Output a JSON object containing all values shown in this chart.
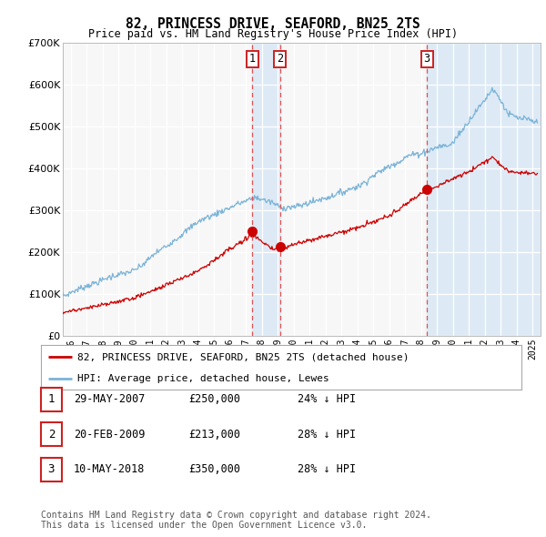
{
  "title": "82, PRINCESS DRIVE, SEAFORD, BN25 2TS",
  "subtitle": "Price paid vs. HM Land Registry's House Price Index (HPI)",
  "ylim": [
    0,
    700000
  ],
  "yticks": [
    0,
    100000,
    200000,
    300000,
    400000,
    500000,
    600000,
    700000
  ],
  "hpi_color": "#7ab3d8",
  "price_color": "#cc0000",
  "transactions": [
    {
      "num": 1,
      "date": "29-MAY-2007",
      "price": 250000,
      "pct": "24%",
      "x_year": 2007.41
    },
    {
      "num": 2,
      "date": "20-FEB-2009",
      "price": 213000,
      "pct": "28%",
      "x_year": 2009.13
    },
    {
      "num": 3,
      "date": "10-MAY-2018",
      "price": 350000,
      "pct": "28%",
      "x_year": 2018.36
    }
  ],
  "legend_label_red": "82, PRINCESS DRIVE, SEAFORD, BN25 2TS (detached house)",
  "legend_label_blue": "HPI: Average price, detached house, Lewes",
  "footnote": "Contains HM Land Registry data © Crown copyright and database right 2024.\nThis data is licensed under the Open Government Licence v3.0.",
  "background_color": "#ffffff",
  "plot_bg_color": "#f7f7f7",
  "shade_color": "#ddeaf5",
  "xmin": 1995.5,
  "xmax": 2025.5
}
